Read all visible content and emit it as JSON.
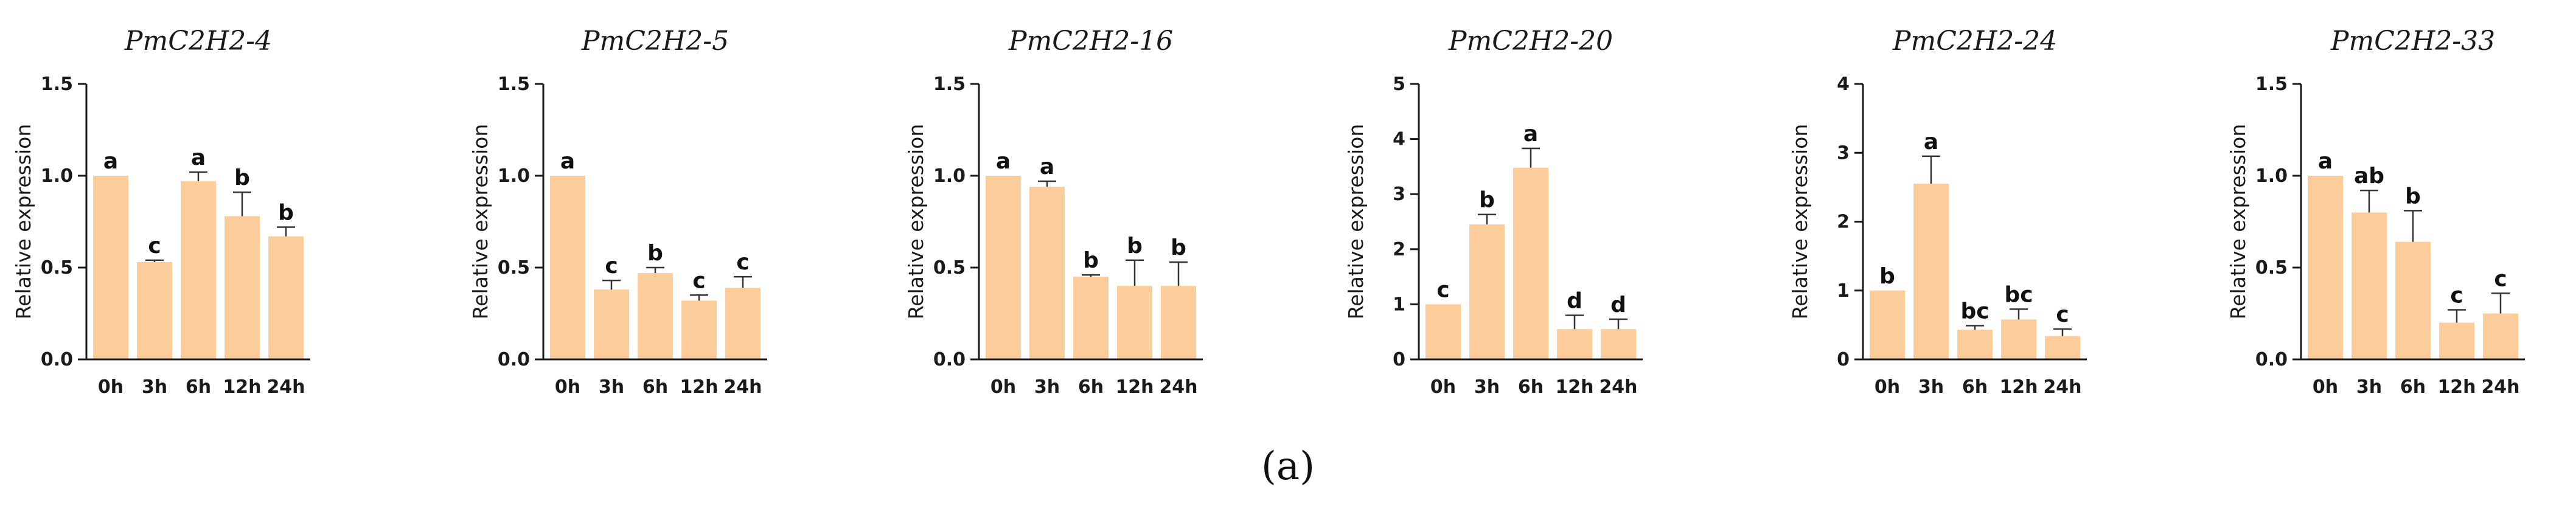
{
  "colors": {
    "bar": "#fdcc9b",
    "axis": "#1a1a1a",
    "error": "#333333"
  },
  "caption": "(a)",
  "chart_data": [
    {
      "type": "bar",
      "title": "PmC2H2-4",
      "ylabel": "Relative expression",
      "xlabel": "",
      "categories": [
        "0h",
        "3h",
        "6h",
        "12h",
        "24h"
      ],
      "values": [
        1.0,
        0.53,
        0.97,
        0.78,
        0.67
      ],
      "errors": [
        0.0,
        0.01,
        0.05,
        0.13,
        0.05
      ],
      "significance": [
        "a",
        "c",
        "a",
        "b",
        "b"
      ],
      "ylim": [
        0,
        1.5
      ],
      "yticks": [
        0,
        0.5,
        1.0,
        1.5
      ],
      "ytick_labels": [
        "0.0",
        "0.5",
        "1.0",
        "1.5"
      ]
    },
    {
      "type": "bar",
      "title": "PmC2H2-5",
      "ylabel": "Relative expression",
      "xlabel": "",
      "categories": [
        "0h",
        "3h",
        "6h",
        "12h",
        "24h"
      ],
      "values": [
        1.0,
        0.38,
        0.47,
        0.32,
        0.39
      ],
      "errors": [
        0.0,
        0.05,
        0.03,
        0.03,
        0.06
      ],
      "significance": [
        "a",
        "c",
        "b",
        "c",
        "c"
      ],
      "ylim": [
        0,
        1.5
      ],
      "yticks": [
        0,
        0.5,
        1.0,
        1.5
      ],
      "ytick_labels": [
        "0.0",
        "0.5",
        "1.0",
        "1.5"
      ]
    },
    {
      "type": "bar",
      "title": "PmC2H2-16",
      "ylabel": "Relative expression",
      "xlabel": "",
      "categories": [
        "0h",
        "3h",
        "6h",
        "12h",
        "24h"
      ],
      "values": [
        1.0,
        0.94,
        0.45,
        0.4,
        0.4
      ],
      "errors": [
        0.0,
        0.03,
        0.01,
        0.14,
        0.13
      ],
      "significance": [
        "a",
        "a",
        "b",
        "b",
        "b"
      ],
      "ylim": [
        0,
        1.5
      ],
      "yticks": [
        0,
        0.5,
        1.0,
        1.5
      ],
      "ytick_labels": [
        "0.0",
        "0.5",
        "1.0",
        "1.5"
      ]
    },
    {
      "type": "bar",
      "title": "PmC2H2-20",
      "ylabel": "Relative expression",
      "xlabel": "",
      "categories": [
        "0h",
        "3h",
        "6h",
        "12h",
        "24h"
      ],
      "values": [
        1.0,
        2.45,
        3.48,
        0.55,
        0.55
      ],
      "errors": [
        0.0,
        0.18,
        0.35,
        0.25,
        0.18
      ],
      "significance": [
        "c",
        "b",
        "a",
        "d",
        "d"
      ],
      "ylim": [
        0,
        5
      ],
      "yticks": [
        0,
        1,
        2,
        3,
        4,
        5
      ],
      "ytick_labels": [
        "0",
        "1",
        "2",
        "3",
        "4",
        "5"
      ]
    },
    {
      "type": "bar",
      "title": "PmC2H2-24",
      "ylabel": "Relative expression",
      "xlabel": "",
      "categories": [
        "0h",
        "3h",
        "6h",
        "12h",
        "24h"
      ],
      "values": [
        1.0,
        2.55,
        0.43,
        0.58,
        0.34
      ],
      "errors": [
        0.0,
        0.4,
        0.06,
        0.15,
        0.1
      ],
      "significance": [
        "b",
        "a",
        "bc",
        "bc",
        "c"
      ],
      "ylim": [
        0,
        4
      ],
      "yticks": [
        0,
        1,
        2,
        3,
        4
      ],
      "ytick_labels": [
        "0",
        "1",
        "2",
        "3",
        "4"
      ]
    },
    {
      "type": "bar",
      "title": "PmC2H2-33",
      "ylabel": "Relative expression",
      "xlabel": "",
      "categories": [
        "0h",
        "3h",
        "6h",
        "12h",
        "24h"
      ],
      "values": [
        1.0,
        0.8,
        0.64,
        0.2,
        0.25
      ],
      "errors": [
        0.0,
        0.12,
        0.17,
        0.07,
        0.11
      ],
      "significance": [
        "a",
        "ab",
        "b",
        "c",
        "c"
      ],
      "ylim": [
        0,
        1.5
      ],
      "yticks": [
        0,
        0.5,
        1.0,
        1.5
      ],
      "ytick_labels": [
        "0.0",
        "0.5",
        "1.0",
        "1.5"
      ]
    }
  ]
}
